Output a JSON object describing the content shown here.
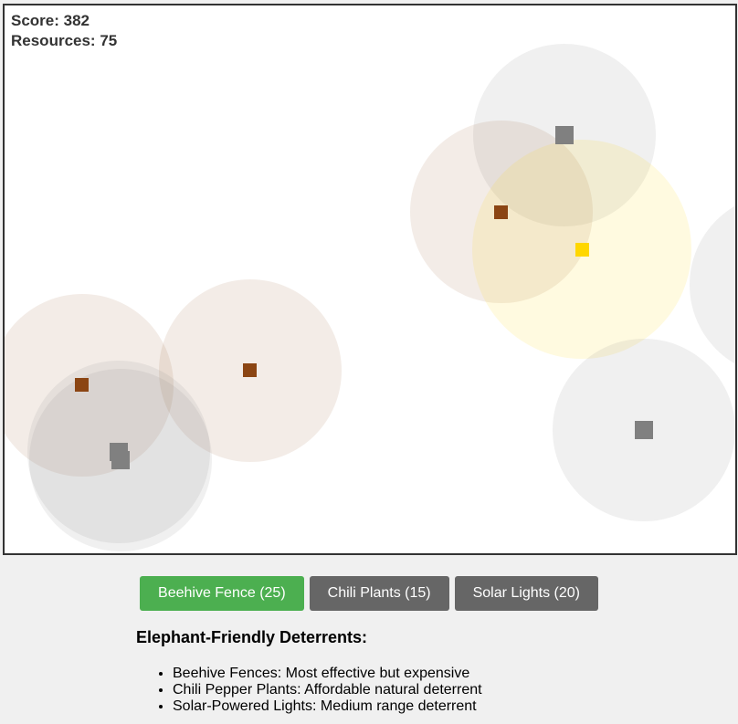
{
  "hud": {
    "score_label": "Score: 382",
    "resources_label": "Resources: 75"
  },
  "colors": {
    "beehive": "#8B4513",
    "chili": "#808080",
    "solar": "#FFD700",
    "active_button": "#4CAF50",
    "idle_button": "#666666"
  },
  "toolbar": {
    "buttons": [
      {
        "label": "Beehive Fence (25)",
        "selected": true
      },
      {
        "label": "Chili Plants (15)",
        "selected": false
      },
      {
        "label": "Solar Lights (20)",
        "selected": false
      }
    ]
  },
  "info": {
    "title": "Elephant-Friendly Deterrents:",
    "items": [
      "Beehive Fences: Most effective but expensive",
      "Chili Pepper Plants: Affordable natural deterrent",
      "Solar-Powered Lights: Medium range deterrent"
    ]
  }
}
